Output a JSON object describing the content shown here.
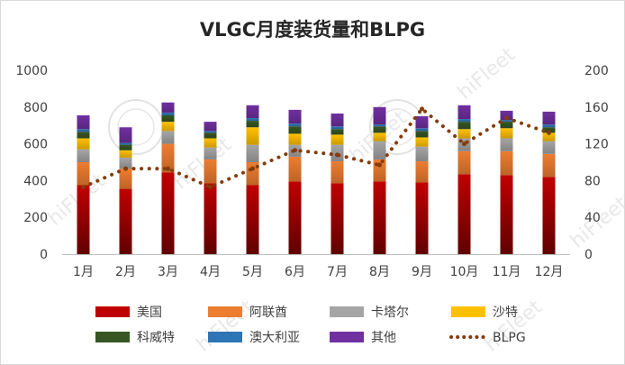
{
  "chart_data": {
    "type": "bar",
    "stacked": true,
    "title": "VLGC月度装货量和BLPG",
    "categories": [
      "1月",
      "2月",
      "3月",
      "4月",
      "5月",
      "6月",
      "7月",
      "8月",
      "9月",
      "10月",
      "11月",
      "12月"
    ],
    "ylim": [
      0,
      1000
    ],
    "yticks": [
      "0",
      "200",
      "400",
      "600",
      "800",
      "1000"
    ],
    "y2lim": [
      0,
      200
    ],
    "y2ticks": [
      "0",
      "40",
      "80",
      "120",
      "160",
      "200"
    ],
    "grid": false,
    "legend_position": "bottom",
    "watermark": "hiFleet",
    "series": [
      {
        "name": "美国",
        "color": "#c00000",
        "values": [
          375,
          355,
          445,
          385,
          375,
          395,
          385,
          395,
          390,
          435,
          430,
          420
        ]
      },
      {
        "name": "阿联酋",
        "color": "#ed7d31",
        "values": [
          125,
          110,
          155,
          130,
          125,
          135,
          120,
          120,
          115,
          125,
          130,
          125
        ]
      },
      {
        "name": "卡塔尔",
        "color": "#a5a5a5",
        "values": [
          70,
          60,
          70,
          65,
          95,
          65,
          90,
          100,
          80,
          70,
          70,
          70
        ]
      },
      {
        "name": "沙特",
        "color": "#ffc000",
        "values": [
          60,
          40,
          50,
          50,
          95,
          60,
          55,
          45,
          50,
          50,
          55,
          45
        ]
      },
      {
        "name": "科威特",
        "color": "#375623",
        "values": [
          35,
          30,
          35,
          30,
          35,
          40,
          30,
          35,
          35,
          40,
          35,
          30
        ]
      },
      {
        "name": "澳大利亚",
        "color": "#2e75b6",
        "values": [
          15,
          10,
          15,
          10,
          15,
          15,
          15,
          10,
          15,
          15,
          10,
          15
        ]
      },
      {
        "name": "其他",
        "color": "#7030a0",
        "values": [
          75,
          85,
          55,
          50,
          70,
          75,
          70,
          95,
          65,
          75,
          50,
          70
        ]
      }
    ],
    "line_series": {
      "name": "BLPG",
      "color": "#843c0c",
      "axis": "right",
      "values": [
        73,
        93,
        93,
        73,
        93,
        113,
        108,
        97,
        158,
        120,
        148,
        132
      ]
    }
  }
}
